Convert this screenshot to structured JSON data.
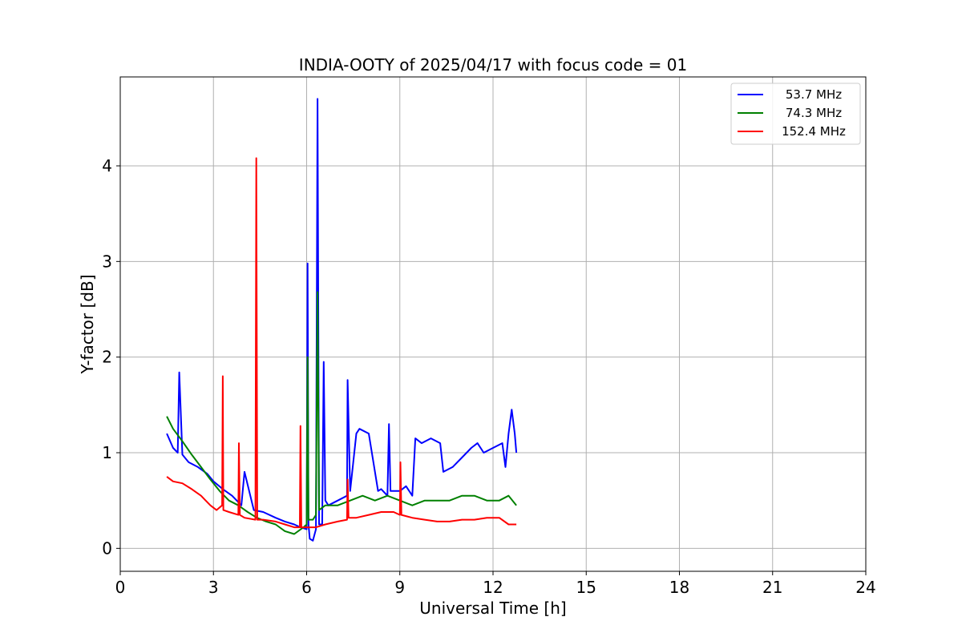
{
  "chart_data": {
    "type": "line",
    "title": "INDIA-OOTY of 2025/04/17 with focus code = 01",
    "xlabel": "Universal Time [h]",
    "ylabel": "Y-factor [dB]",
    "xlim": [
      0,
      24
    ],
    "ylim": [
      -0.24,
      4.93
    ],
    "xticks": [
      0,
      3,
      6,
      9,
      12,
      15,
      18,
      21,
      24
    ],
    "yticks": [
      0,
      1,
      2,
      3,
      4
    ],
    "grid": true,
    "legend_position": "top-right",
    "series": [
      {
        "name": "53.7 MHz",
        "color": "#0000ff",
        "x": [
          1.5,
          1.7,
          1.85,
          1.9,
          2.0,
          2.2,
          2.5,
          2.8,
          3.0,
          3.3,
          3.6,
          3.9,
          4.0,
          4.3,
          4.6,
          5.0,
          5.3,
          5.6,
          5.8,
          6.0,
          6.03,
          6.06,
          6.1,
          6.2,
          6.3,
          6.35,
          6.4,
          6.5,
          6.55,
          6.6,
          6.7,
          7.0,
          7.3,
          7.32,
          7.4,
          7.6,
          7.7,
          8.0,
          8.3,
          8.4,
          8.6,
          8.65,
          8.7,
          9.0,
          9.2,
          9.4,
          9.5,
          9.7,
          10.0,
          10.3,
          10.4,
          10.7,
          11.0,
          11.3,
          11.5,
          11.7,
          12.0,
          12.3,
          12.4,
          12.5,
          12.6,
          12.7,
          12.75
        ],
        "y": [
          1.2,
          1.05,
          1.0,
          1.84,
          0.98,
          0.9,
          0.85,
          0.78,
          0.7,
          0.62,
          0.55,
          0.45,
          0.8,
          0.4,
          0.38,
          0.32,
          0.28,
          0.25,
          0.22,
          0.2,
          2.98,
          0.25,
          0.1,
          0.08,
          0.2,
          4.7,
          0.25,
          0.25,
          1.95,
          0.5,
          0.45,
          0.5,
          0.55,
          1.76,
          0.6,
          1.2,
          1.25,
          1.2,
          0.6,
          0.62,
          0.55,
          1.3,
          0.6,
          0.6,
          0.65,
          0.55,
          1.15,
          1.1,
          1.15,
          1.1,
          0.8,
          0.85,
          0.95,
          1.05,
          1.1,
          1.0,
          1.05,
          1.1,
          0.85,
          1.2,
          1.45,
          1.2,
          1.0
        ]
      },
      {
        "name": "74.3 MHz",
        "color": "#008000",
        "x": [
          1.5,
          1.7,
          2.0,
          2.3,
          2.6,
          2.9,
          3.2,
          3.5,
          3.8,
          4.1,
          4.4,
          4.7,
          5.0,
          5.3,
          5.6,
          5.9,
          6.0,
          6.03,
          6.06,
          6.2,
          6.3,
          6.35,
          6.4,
          6.6,
          7.0,
          7.4,
          7.8,
          8.2,
          8.6,
          9.0,
          9.4,
          9.8,
          10.2,
          10.6,
          11.0,
          11.4,
          11.8,
          12.2,
          12.5,
          12.75
        ],
        "y": [
          1.38,
          1.25,
          1.12,
          0.98,
          0.85,
          0.72,
          0.6,
          0.5,
          0.45,
          0.38,
          0.32,
          0.28,
          0.25,
          0.18,
          0.15,
          0.22,
          0.25,
          2.0,
          0.3,
          0.3,
          0.35,
          2.68,
          0.4,
          0.45,
          0.45,
          0.5,
          0.55,
          0.5,
          0.55,
          0.5,
          0.45,
          0.5,
          0.5,
          0.5,
          0.55,
          0.55,
          0.5,
          0.5,
          0.55,
          0.45
        ]
      },
      {
        "name": "152.4 MHz",
        "color": "#ff0000",
        "x": [
          1.5,
          1.7,
          2.0,
          2.3,
          2.6,
          2.9,
          3.1,
          3.28,
          3.3,
          3.32,
          3.5,
          3.8,
          3.82,
          3.85,
          4.0,
          4.35,
          4.38,
          4.41,
          4.6,
          5.0,
          5.3,
          5.6,
          5.78,
          5.8,
          5.83,
          6.0,
          6.3,
          6.6,
          7.0,
          7.3,
          7.32,
          7.35,
          7.6,
          8.0,
          8.4,
          8.8,
          9.0,
          9.02,
          9.05,
          9.4,
          9.8,
          10.2,
          10.6,
          11.0,
          11.4,
          11.8,
          12.2,
          12.5,
          12.75
        ],
        "y": [
          0.75,
          0.7,
          0.68,
          0.62,
          0.55,
          0.45,
          0.4,
          0.45,
          1.8,
          0.4,
          0.38,
          0.35,
          1.1,
          0.35,
          0.32,
          0.3,
          4.08,
          0.3,
          0.3,
          0.28,
          0.25,
          0.22,
          0.22,
          1.28,
          0.22,
          0.22,
          0.22,
          0.25,
          0.28,
          0.3,
          0.72,
          0.32,
          0.32,
          0.35,
          0.38,
          0.38,
          0.35,
          0.9,
          0.35,
          0.32,
          0.3,
          0.28,
          0.28,
          0.3,
          0.3,
          0.32,
          0.32,
          0.25,
          0.25
        ]
      }
    ]
  }
}
